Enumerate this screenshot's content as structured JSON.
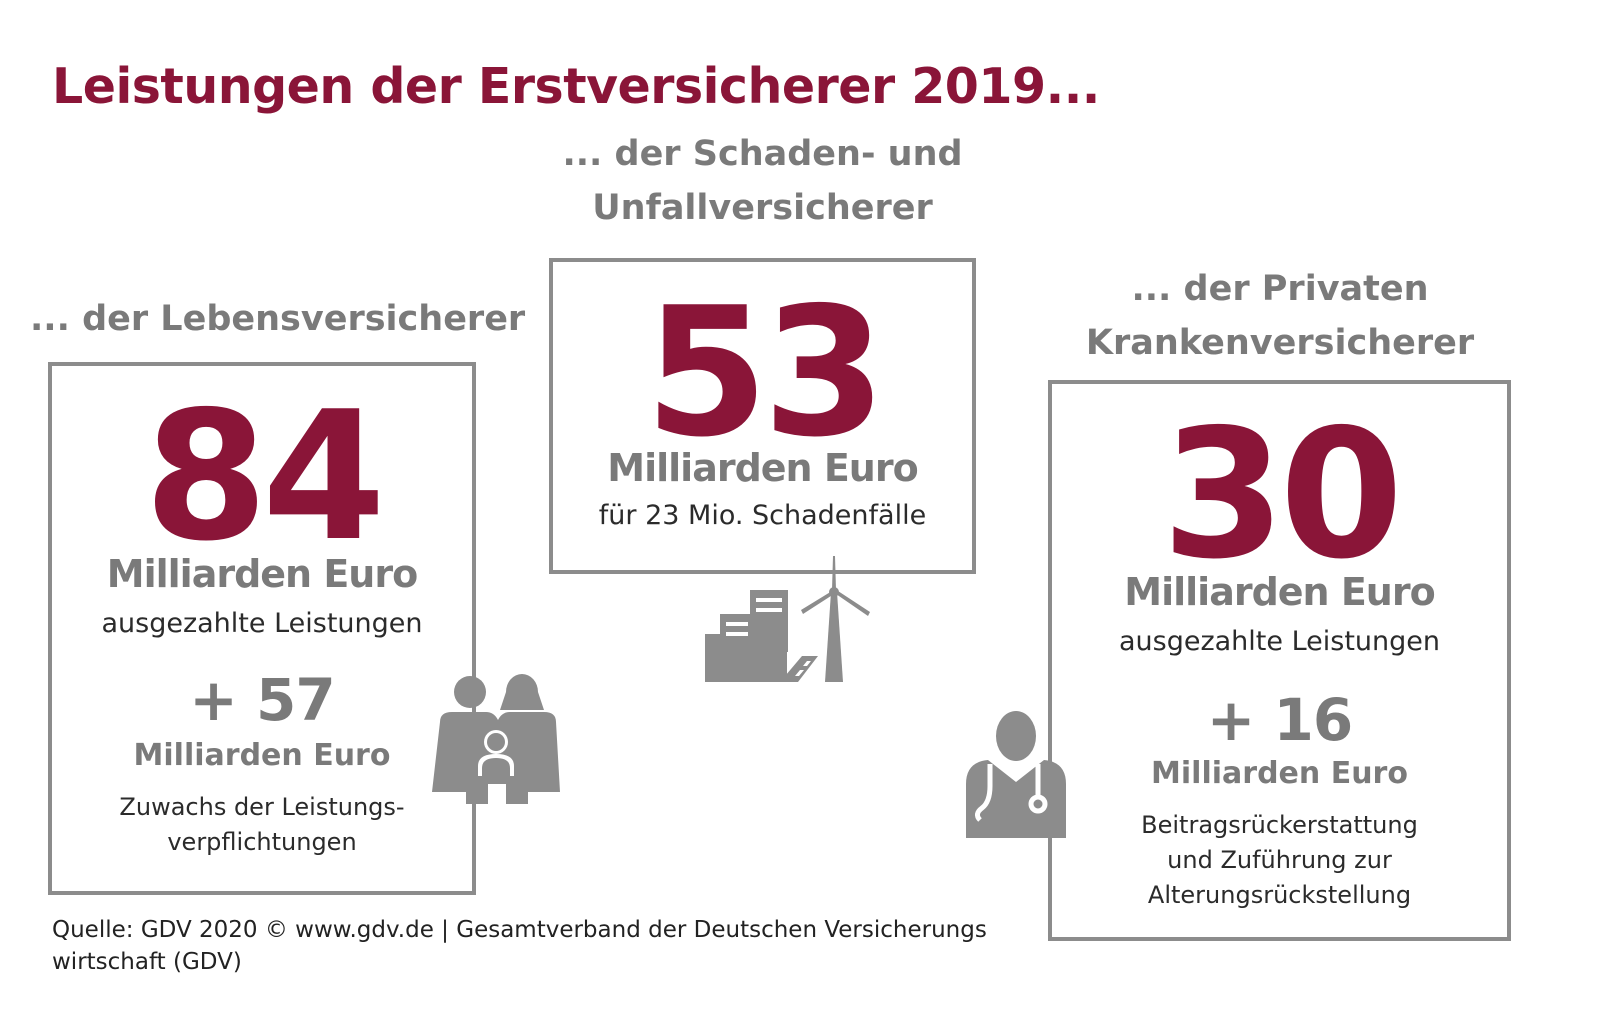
{
  "title": "Leistungen der Erstversicherer 2019...",
  "life": {
    "heading": "... der Lebensversicherer",
    "value": "84",
    "unit": "Milliarden Euro",
    "description": "ausgezahlte Leistungen",
    "extra_value": "+ 57",
    "extra_unit": "Milliarden Euro",
    "extra_description_line1": "Zuwachs der Leistungs-",
    "extra_description_line2": "verpflichtungen",
    "icon": "family-icon"
  },
  "property": {
    "heading_line1": "... der Schaden- und",
    "heading_line2": "Unfallversicherer",
    "value": "53",
    "unit": "Milliarden Euro",
    "description": "für 23 Mio. Schadenfälle",
    "icon": "city-wind-turbine-icon"
  },
  "health": {
    "heading_line1": "... der Privaten",
    "heading_line2": "Krankenversicherer",
    "value": "30",
    "unit": "Milliarden Euro",
    "description": "ausgezahlte Leistungen",
    "extra_value": "+ 16",
    "extra_unit": "Milliarden Euro",
    "extra_description_line1": "Beitragsrückerstattung",
    "extra_description_line2": "und Zuführung zur",
    "extra_description_line3": "Alterungsrückstellung",
    "icon": "doctor-icon"
  },
  "source_line1": "Quelle: GDV 2020 © www.gdv.de | Gesamtverband der Deutschen Versicherungs",
  "source_line2": "wirtschaft (GDV)",
  "colors": {
    "accent": "#8a1538",
    "gray": "#7a7a7a",
    "border": "#8c8c8c"
  }
}
